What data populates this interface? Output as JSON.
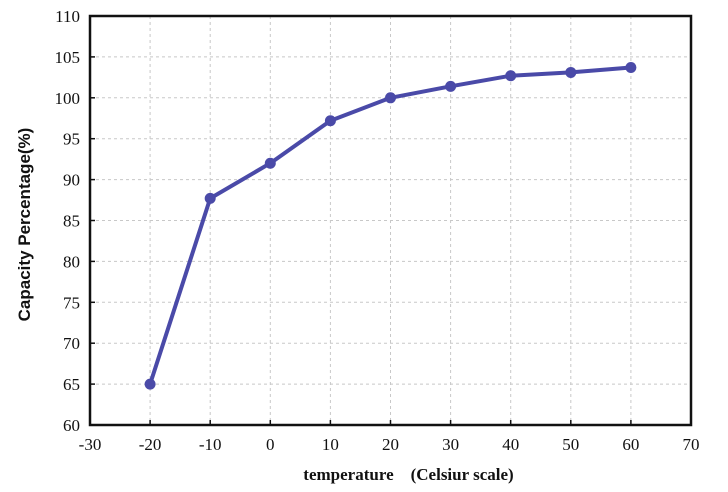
{
  "chart_data": {
    "type": "line",
    "title": "",
    "xlabel": "temperature　(Celsiur scale)",
    "ylabel": "Capacity Percentage(%)",
    "xlim": [
      -30,
      70
    ],
    "ylim": [
      60,
      110
    ],
    "x_ticks": [
      "-30",
      "-20",
      "-10",
      "0",
      "10",
      "20",
      "30",
      "40",
      "50",
      "60",
      "70"
    ],
    "y_ticks": [
      "60",
      "65",
      "70",
      "75",
      "80",
      "85",
      "90",
      "95",
      "100",
      "105",
      "110"
    ],
    "grid": true,
    "legend": "none",
    "series": [
      {
        "color": "#4a4aa8",
        "x": [
          -20,
          -10,
          0,
          10,
          20,
          30,
          40,
          50,
          60
        ],
        "y": [
          65,
          87.7,
          92,
          97.2,
          100,
          101.4,
          102.7,
          103.1,
          103.7
        ]
      }
    ]
  }
}
